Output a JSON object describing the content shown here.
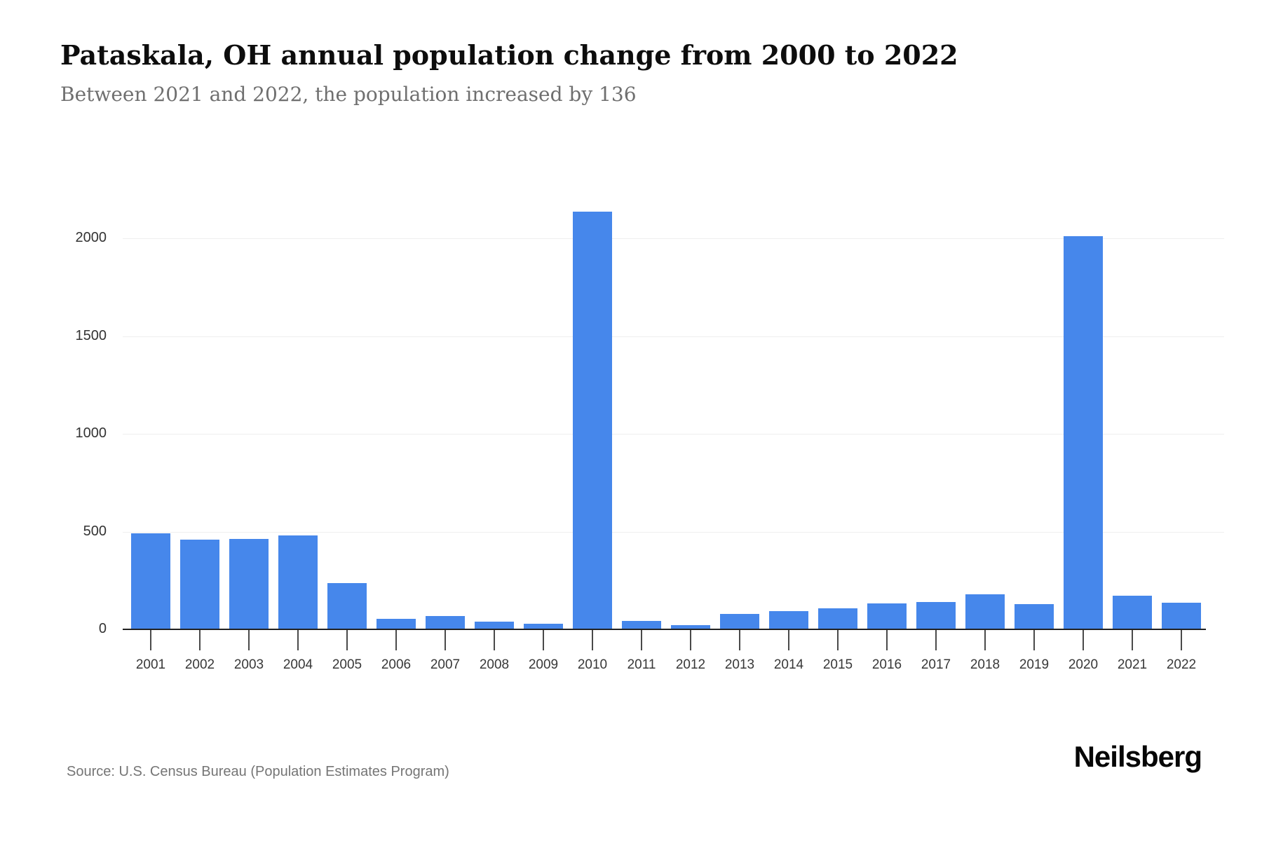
{
  "header": {
    "title": "Pataskala, OH annual population change from 2000 to 2022",
    "subtitle": "Between 2021 and 2022, the population increased by 136"
  },
  "footer": {
    "source": "Source: U.S. Census Bureau (Population Estimates Program)",
    "brand": "Neilsberg"
  },
  "colors": {
    "bar": "#4687eb",
    "gridline": "#efefef",
    "axis": "#212121",
    "title": "#0d0d0d",
    "subtitle": "#6f6f6f",
    "source": "#757575"
  },
  "chart_data": {
    "type": "bar",
    "title": "Pataskala, OH annual population change from 2000 to 2022",
    "subtitle": "Between 2021 and 2022, the population increased by 136",
    "xlabel": "",
    "ylabel": "",
    "categories": [
      "2001",
      "2002",
      "2003",
      "2004",
      "2005",
      "2006",
      "2007",
      "2008",
      "2009",
      "2010",
      "2011",
      "2012",
      "2013",
      "2014",
      "2015",
      "2016",
      "2017",
      "2018",
      "2019",
      "2020",
      "2021",
      "2022"
    ],
    "values": [
      490,
      458,
      462,
      480,
      235,
      55,
      68,
      40,
      30,
      2135,
      42,
      21,
      80,
      92,
      107,
      132,
      140,
      181,
      128,
      2010,
      173,
      136
    ],
    "yticks": [
      0,
      500,
      1000,
      1500,
      2000
    ],
    "ylim": [
      0,
      2150
    ],
    "grid": true,
    "legend": "none"
  }
}
